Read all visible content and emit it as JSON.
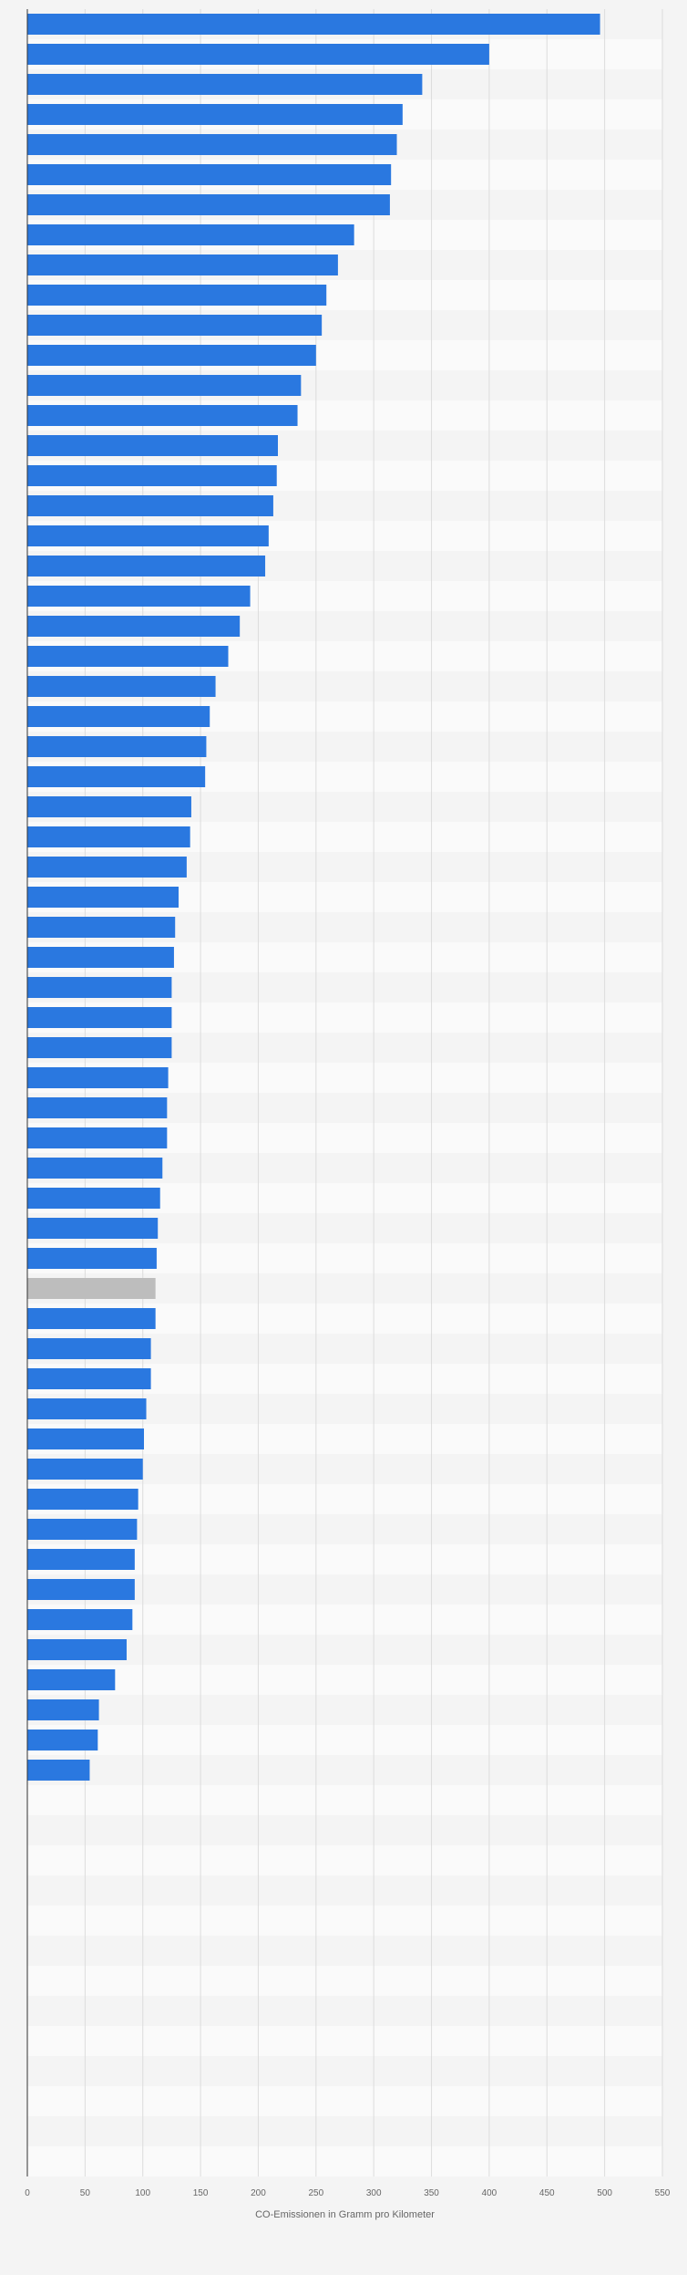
{
  "chart_data": {
    "type": "bar",
    "orientation": "horizontal",
    "xlabel": "CO-Emissionen in Gramm pro Kilometer",
    "xlim": [
      0,
      550
    ],
    "xticks": [
      "0",
      "50",
      "100",
      "150",
      "200",
      "250",
      "300",
      "350",
      "400",
      "450",
      "500",
      "550"
    ],
    "grid": true,
    "bar_color": "#2a78e0",
    "highlight_color": "#bdbdbd",
    "highlight_index": 42,
    "row_colors": [
      "#f4f4f4",
      "#fafafa"
    ],
    "row_count": 72,
    "values": [
      496,
      400,
      342,
      325,
      320,
      315,
      314,
      283,
      269,
      259,
      255,
      250,
      237,
      234,
      217,
      216,
      213,
      209,
      206,
      193,
      184,
      174,
      163,
      158,
      155,
      154,
      142,
      141,
      138,
      131,
      128,
      127,
      125,
      125,
      125,
      122,
      121,
      121,
      117,
      115,
      113,
      112,
      111,
      111,
      107,
      107,
      103,
      101,
      100,
      96,
      95,
      93,
      93,
      91,
      86,
      76,
      62,
      61,
      54
    ]
  }
}
